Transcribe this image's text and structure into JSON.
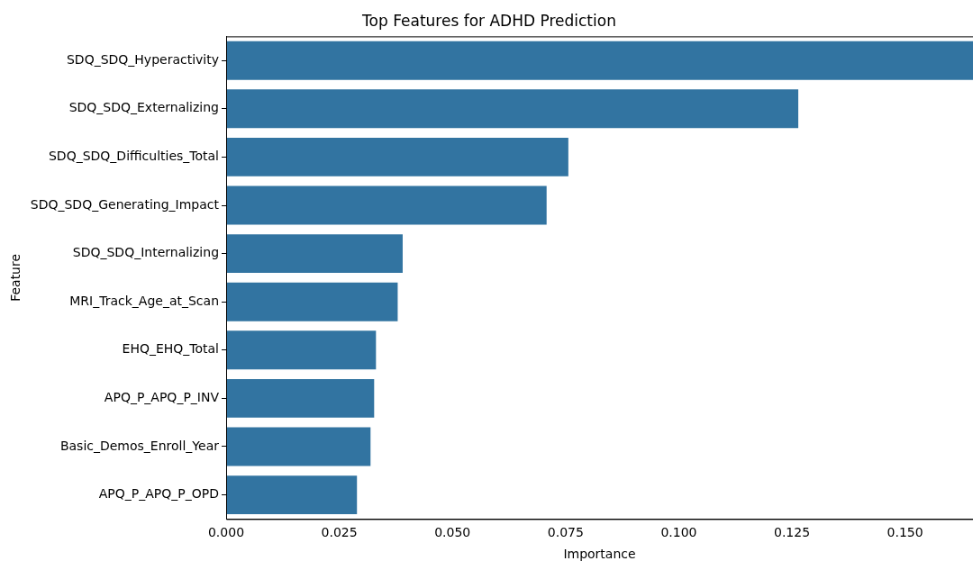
{
  "chart_data": {
    "type": "bar",
    "orientation": "horizontal",
    "title": "Top Features for ADHD Prediction",
    "xlabel": "Importance",
    "ylabel": "Feature",
    "categories": [
      "SDQ_SDQ_Hyperactivity",
      "SDQ_SDQ_Externalizing",
      "SDQ_SDQ_Difficulties_Total",
      "SDQ_SDQ_Generating_Impact",
      "SDQ_SDQ_Internalizing",
      "MRI_Track_Age_at_Scan",
      "EHQ_EHQ_Total",
      "APQ_P_APQ_P_INV",
      "Basic_Demos_Enroll_Year",
      "APQ_P_APQ_P_OPD"
    ],
    "values": [
      0.165,
      0.1264,
      0.0756,
      0.0708,
      0.039,
      0.0379,
      0.0331,
      0.0327,
      0.0319,
      0.0289
    ],
    "color": "#3274a1",
    "xlim": [
      0,
      0.165
    ],
    "xticks": [
      {
        "value": 0,
        "label": "0.000"
      },
      {
        "value": 0.025,
        "label": "0.025"
      },
      {
        "value": 0.05,
        "label": "0.050"
      },
      {
        "value": 0.075,
        "label": "0.075"
      },
      {
        "value": 0.1,
        "label": "0.100"
      },
      {
        "value": 0.125,
        "label": "0.125"
      },
      {
        "value": 0.15,
        "label": "0.150"
      }
    ],
    "grid": false,
    "legend": false
  }
}
